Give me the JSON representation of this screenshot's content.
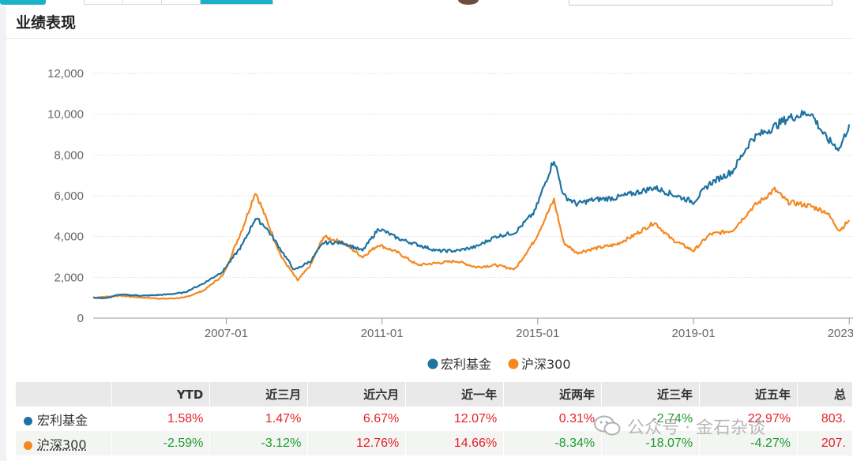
{
  "section": {
    "title": "业绩表现"
  },
  "colors": {
    "fund": "#1e73a0",
    "index": "#f5881f",
    "positive": "#e6202c",
    "negative": "#1e9b2e"
  },
  "chart_data": {
    "type": "line",
    "title": "",
    "ylim": [
      0,
      12000
    ],
    "y_ticks": [
      "0",
      "2,000",
      "4,000",
      "6,000",
      "8,000",
      "10,000",
      "12,000"
    ],
    "x_ticks": [
      "2007-01",
      "2011-01",
      "2015-01",
      "2019-01",
      "2023-01"
    ],
    "legend_position": "bottom-center",
    "grid": "horizontal dashed",
    "series": [
      {
        "name": "宏利基金",
        "points": [
          [
            "2003-08",
            1000
          ],
          [
            "2003-12",
            980
          ],
          [
            "2004-04",
            1150
          ],
          [
            "2004-12",
            1100
          ],
          [
            "2005-06",
            1150
          ],
          [
            "2005-12",
            1250
          ],
          [
            "2006-06",
            1700
          ],
          [
            "2006-12",
            2300
          ],
          [
            "2007-06",
            3600
          ],
          [
            "2007-10",
            4900
          ],
          [
            "2008-01",
            4500
          ],
          [
            "2008-04",
            3800
          ],
          [
            "2008-10",
            2350
          ],
          [
            "2009-03",
            2800
          ],
          [
            "2009-07",
            3700
          ],
          [
            "2010-01",
            3700
          ],
          [
            "2010-07",
            3300
          ],
          [
            "2010-12",
            4400
          ],
          [
            "2011-06",
            3900
          ],
          [
            "2011-12",
            3600
          ],
          [
            "2012-06",
            3300
          ],
          [
            "2012-12",
            3300
          ],
          [
            "2013-06",
            3500
          ],
          [
            "2013-12",
            4000
          ],
          [
            "2014-06",
            4200
          ],
          [
            "2014-12",
            5200
          ],
          [
            "2015-06",
            7800
          ],
          [
            "2015-09",
            6000
          ],
          [
            "2016-01",
            5600
          ],
          [
            "2016-06",
            5800
          ],
          [
            "2017-01",
            5900
          ],
          [
            "2017-06",
            6100
          ],
          [
            "2018-01",
            6400
          ],
          [
            "2018-06",
            6100
          ],
          [
            "2019-01",
            5700
          ],
          [
            "2019-06",
            6600
          ],
          [
            "2020-01",
            7200
          ],
          [
            "2020-07",
            8800
          ],
          [
            "2021-01",
            9300
          ],
          [
            "2021-06",
            9800
          ],
          [
            "2022-01",
            10100
          ],
          [
            "2022-06",
            8800
          ],
          [
            "2022-10",
            8300
          ],
          [
            "2023-01",
            9500
          ]
        ]
      },
      {
        "name": "沪深300",
        "points": [
          [
            "2003-08",
            1000
          ],
          [
            "2004-04",
            1100
          ],
          [
            "2004-12",
            1000
          ],
          [
            "2005-06",
            950
          ],
          [
            "2005-12",
            1000
          ],
          [
            "2006-06",
            1350
          ],
          [
            "2006-12",
            2100
          ],
          [
            "2007-06",
            4400
          ],
          [
            "2007-10",
            6200
          ],
          [
            "2008-01",
            5000
          ],
          [
            "2008-06",
            3000
          ],
          [
            "2008-11",
            1850
          ],
          [
            "2009-03",
            2600
          ],
          [
            "2009-07",
            4000
          ],
          [
            "2010-01",
            3700
          ],
          [
            "2010-07",
            3000
          ],
          [
            "2010-12",
            3600
          ],
          [
            "2011-06",
            3200
          ],
          [
            "2011-12",
            2600
          ],
          [
            "2012-06",
            2700
          ],
          [
            "2012-12",
            2800
          ],
          [
            "2013-06",
            2500
          ],
          [
            "2013-12",
            2600
          ],
          [
            "2014-06",
            2400
          ],
          [
            "2014-12",
            3800
          ],
          [
            "2015-06",
            5800
          ],
          [
            "2015-09",
            3700
          ],
          [
            "2016-01",
            3200
          ],
          [
            "2016-06",
            3400
          ],
          [
            "2017-01",
            3600
          ],
          [
            "2017-06",
            4000
          ],
          [
            "2018-01",
            4700
          ],
          [
            "2018-06",
            3900
          ],
          [
            "2019-01",
            3300
          ],
          [
            "2019-06",
            4100
          ],
          [
            "2020-01",
            4300
          ],
          [
            "2020-07",
            5400
          ],
          [
            "2021-02",
            6300
          ],
          [
            "2021-06",
            5700
          ],
          [
            "2022-01",
            5500
          ],
          [
            "2022-06",
            5200
          ],
          [
            "2022-10",
            4300
          ],
          [
            "2023-01",
            4800
          ]
        ]
      }
    ]
  },
  "table": {
    "columns": [
      "YTD",
      "近三月",
      "近六月",
      "近一年",
      "近两年",
      "近三年",
      "近五年",
      "总"
    ],
    "rows": [
      {
        "name": "宏利基金",
        "values": [
          "1.58%",
          "1.47%",
          "6.67%",
          "12.07%",
          "0.31%",
          "-2.74%",
          "22.97%",
          "803."
        ]
      },
      {
        "name": "沪深300",
        "values": [
          "-2.59%",
          "-3.12%",
          "12.76%",
          "14.66%",
          "-8.34%",
          "-18.07%",
          "-4.27%",
          "207."
        ]
      }
    ]
  },
  "watermark": {
    "text": "公众号 · 金石杂谈",
    "icon": "wechat-icon"
  }
}
